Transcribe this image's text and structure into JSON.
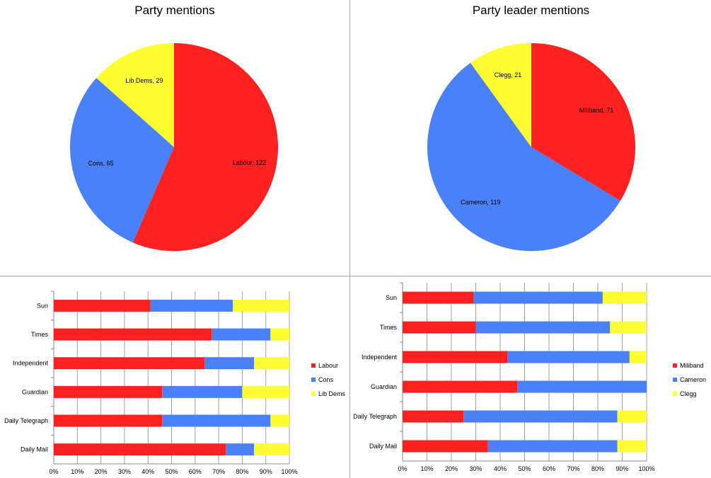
{
  "colors": {
    "red": "#ff2020",
    "blue": "#4a80f8",
    "yellow": "#ffff33"
  },
  "chart_data": [
    {
      "type": "pie",
      "title": "Party mentions",
      "slices": [
        {
          "label": "Labour",
          "value": 122,
          "slice_label": "Labour, 122",
          "color": "#ff2020"
        },
        {
          "label": "Cons",
          "value": 65,
          "slice_label": "Cons, 65",
          "color": "#4a80f8"
        },
        {
          "label": "Lib Dems",
          "value": 29,
          "slice_label": "Lib Dems, 29",
          "color": "#ffff33"
        }
      ]
    },
    {
      "type": "pie",
      "title": "Party leader mentions",
      "slices": [
        {
          "label": "Miliband",
          "value": 71,
          "slice_label": "Miliband, 71",
          "color": "#ff2020"
        },
        {
          "label": "Cameron",
          "value": 119,
          "slice_label": "Cameron, 119",
          "color": "#4a80f8"
        },
        {
          "label": "Clegg",
          "value": 21,
          "slice_label": "Clegg, 21",
          "color": "#ffff33"
        }
      ]
    },
    {
      "type": "bar",
      "orientation": "horizontal",
      "stacked": "percent",
      "categories": [
        "Sun",
        "Times",
        "Independent",
        "Guardian",
        "Daily Telegraph",
        "Daily Mail"
      ],
      "series": [
        {
          "name": "Labour",
          "color": "#ff2020",
          "values": [
            41,
            67,
            64,
            46,
            46,
            73
          ]
        },
        {
          "name": "Cons",
          "color": "#4a80f8",
          "values": [
            35,
            25,
            21,
            34,
            46,
            12
          ]
        },
        {
          "name": "Lib Dems",
          "color": "#ffff33",
          "values": [
            24,
            8,
            15,
            20,
            8,
            15
          ]
        }
      ],
      "xticks": [
        "0%",
        "10%",
        "20%",
        "30%",
        "40%",
        "50%",
        "60%",
        "70%",
        "80%",
        "90%",
        "100%"
      ],
      "xlim": [
        0,
        100
      ],
      "grid": true,
      "legend": "right"
    },
    {
      "type": "bar",
      "orientation": "horizontal",
      "stacked": "percent",
      "categories": [
        "Sun",
        "Times",
        "Independent",
        "Guardian",
        "Daily Telegraph",
        "Daily Mail"
      ],
      "series": [
        {
          "name": "Miliband",
          "color": "#ff2020",
          "values": [
            29,
            30,
            43,
            47,
            25,
            35
          ]
        },
        {
          "name": "Cameron",
          "color": "#4a80f8",
          "values": [
            53,
            55,
            50,
            53,
            63,
            53
          ]
        },
        {
          "name": "Clegg",
          "color": "#ffff33",
          "values": [
            18,
            15,
            7,
            0,
            12,
            12
          ]
        }
      ],
      "xticks": [
        "0%",
        "10%",
        "20%",
        "30%",
        "40%",
        "50%",
        "60%",
        "70%",
        "80%",
        "90%",
        "100%"
      ],
      "xlim": [
        0,
        100
      ],
      "grid": true,
      "legend": "right"
    }
  ]
}
